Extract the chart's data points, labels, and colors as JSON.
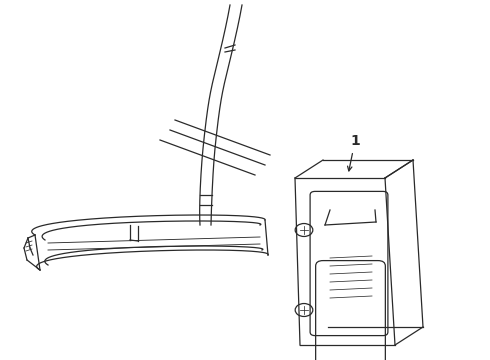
{
  "background_color": "#ffffff",
  "line_color": "#2a2a2a",
  "label_1_text": "1",
  "figsize": [
    4.9,
    3.6
  ],
  "dpi": 100
}
